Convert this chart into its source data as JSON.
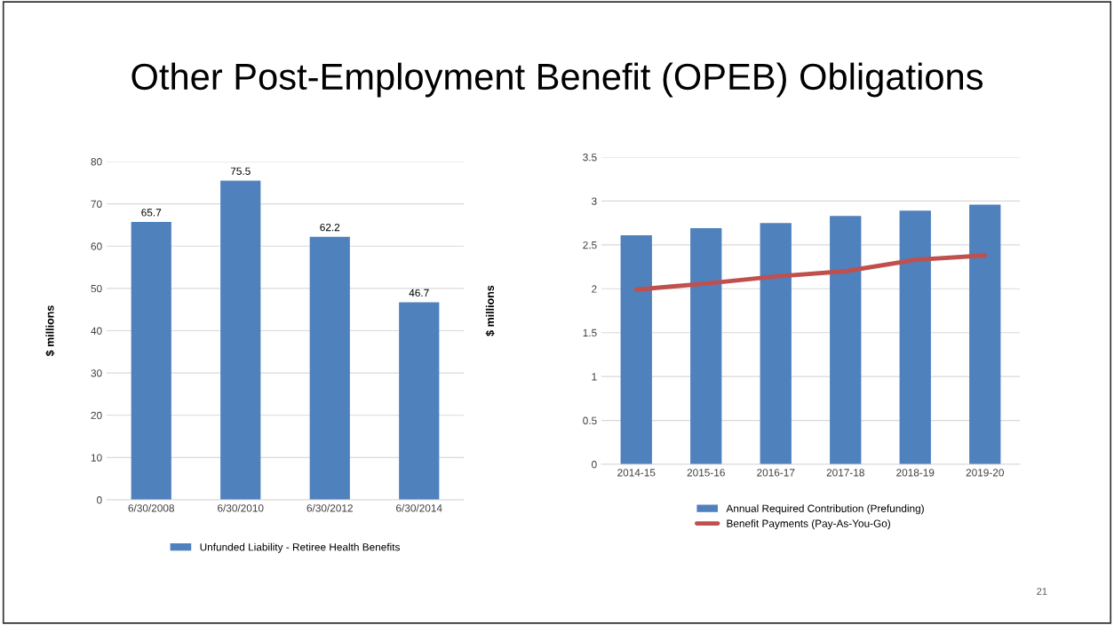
{
  "chart_data": [
    {
      "type": "bar",
      "title": "Other Post-Employment Benefit (OPEB) Obligations",
      "ylabel": "$ millions",
      "categories": [
        "6/30/2008",
        "6/30/2010",
        "6/30/2012",
        "6/30/2014"
      ],
      "series": [
        {
          "name": "Unfunded Liability - Retiree Health Benefits",
          "color": "#4f81bd",
          "values": [
            65.7,
            75.5,
            62.2,
            46.7
          ]
        }
      ],
      "ylim": [
        0,
        80
      ],
      "yticks": [
        0,
        10,
        20,
        30,
        40,
        50,
        60,
        70,
        80
      ],
      "grid": "y",
      "legend": "bottom",
      "data_labels": true
    },
    {
      "type": "bar",
      "ylabel": "$ millions",
      "categories": [
        "2014-15",
        "2015-16",
        "2016-17",
        "2017-18",
        "2018-19",
        "2019-20"
      ],
      "series": [
        {
          "name": "Annual Required Contribution (Prefunding)",
          "color": "#4f81bd",
          "values": [
            2.61,
            2.69,
            2.75,
            2.83,
            2.89,
            2.96
          ]
        },
        {
          "name": "Benefit Payments (Pay-As-You-Go)",
          "type": "line",
          "color": "#c0504d",
          "values": [
            1.99,
            2.06,
            2.14,
            2.2,
            2.33,
            2.38
          ]
        }
      ],
      "ylim": [
        0,
        3.5
      ],
      "yticks": [
        0,
        0.5,
        1,
        1.5,
        2,
        2.5,
        3,
        3.5
      ],
      "grid": "y",
      "legend": "bottom",
      "annotations": [
        "21"
      ]
    }
  ]
}
